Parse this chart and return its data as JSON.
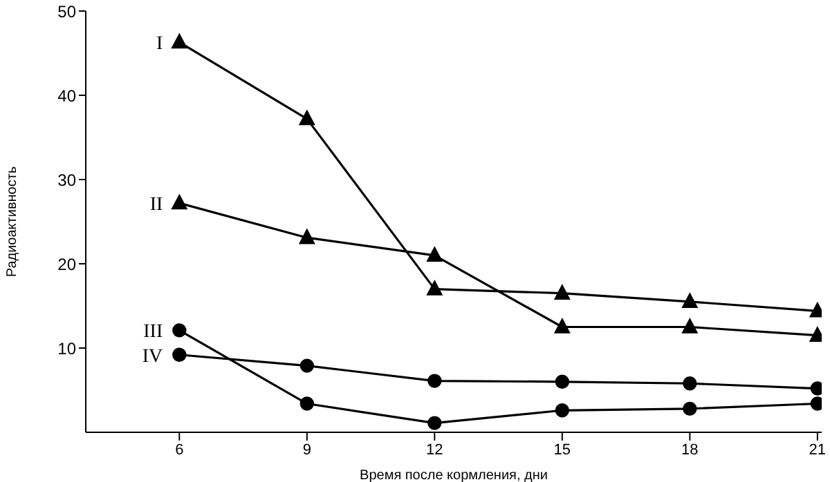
{
  "chart_data": {
    "type": "line",
    "xlabel": "Время после кормления, дни",
    "ylabel": "Радиоактивность",
    "x": [
      6,
      9,
      12,
      15,
      18,
      21
    ],
    "xlim": [
      3.8,
      21.1
    ],
    "xticks": [
      6,
      9,
      12,
      15,
      18,
      21
    ],
    "ylim": [
      0,
      50
    ],
    "yticks": [
      10,
      20,
      30,
      40,
      50
    ],
    "grid": false,
    "legend": false,
    "series": [
      {
        "name": "I",
        "color": "#000000",
        "marker": "triangle",
        "values": [
          46.3,
          37.2,
          17,
          16.5,
          15.5,
          14.4
        ]
      },
      {
        "name": "II",
        "color": "#000000",
        "marker": "triangle",
        "values": [
          27.2,
          23.1,
          21,
          12.5,
          12.5,
          11.5
        ]
      },
      {
        "name": "III",
        "color": "#000000",
        "marker": "circle",
        "values": [
          12.1,
          3.4,
          1.1,
          2.6,
          2.8,
          3.4
        ]
      },
      {
        "name": "IV",
        "color": "#000000",
        "marker": "circle",
        "values": [
          9.2,
          7.9,
          6.1,
          6,
          5.8,
          5.2
        ]
      }
    ]
  }
}
